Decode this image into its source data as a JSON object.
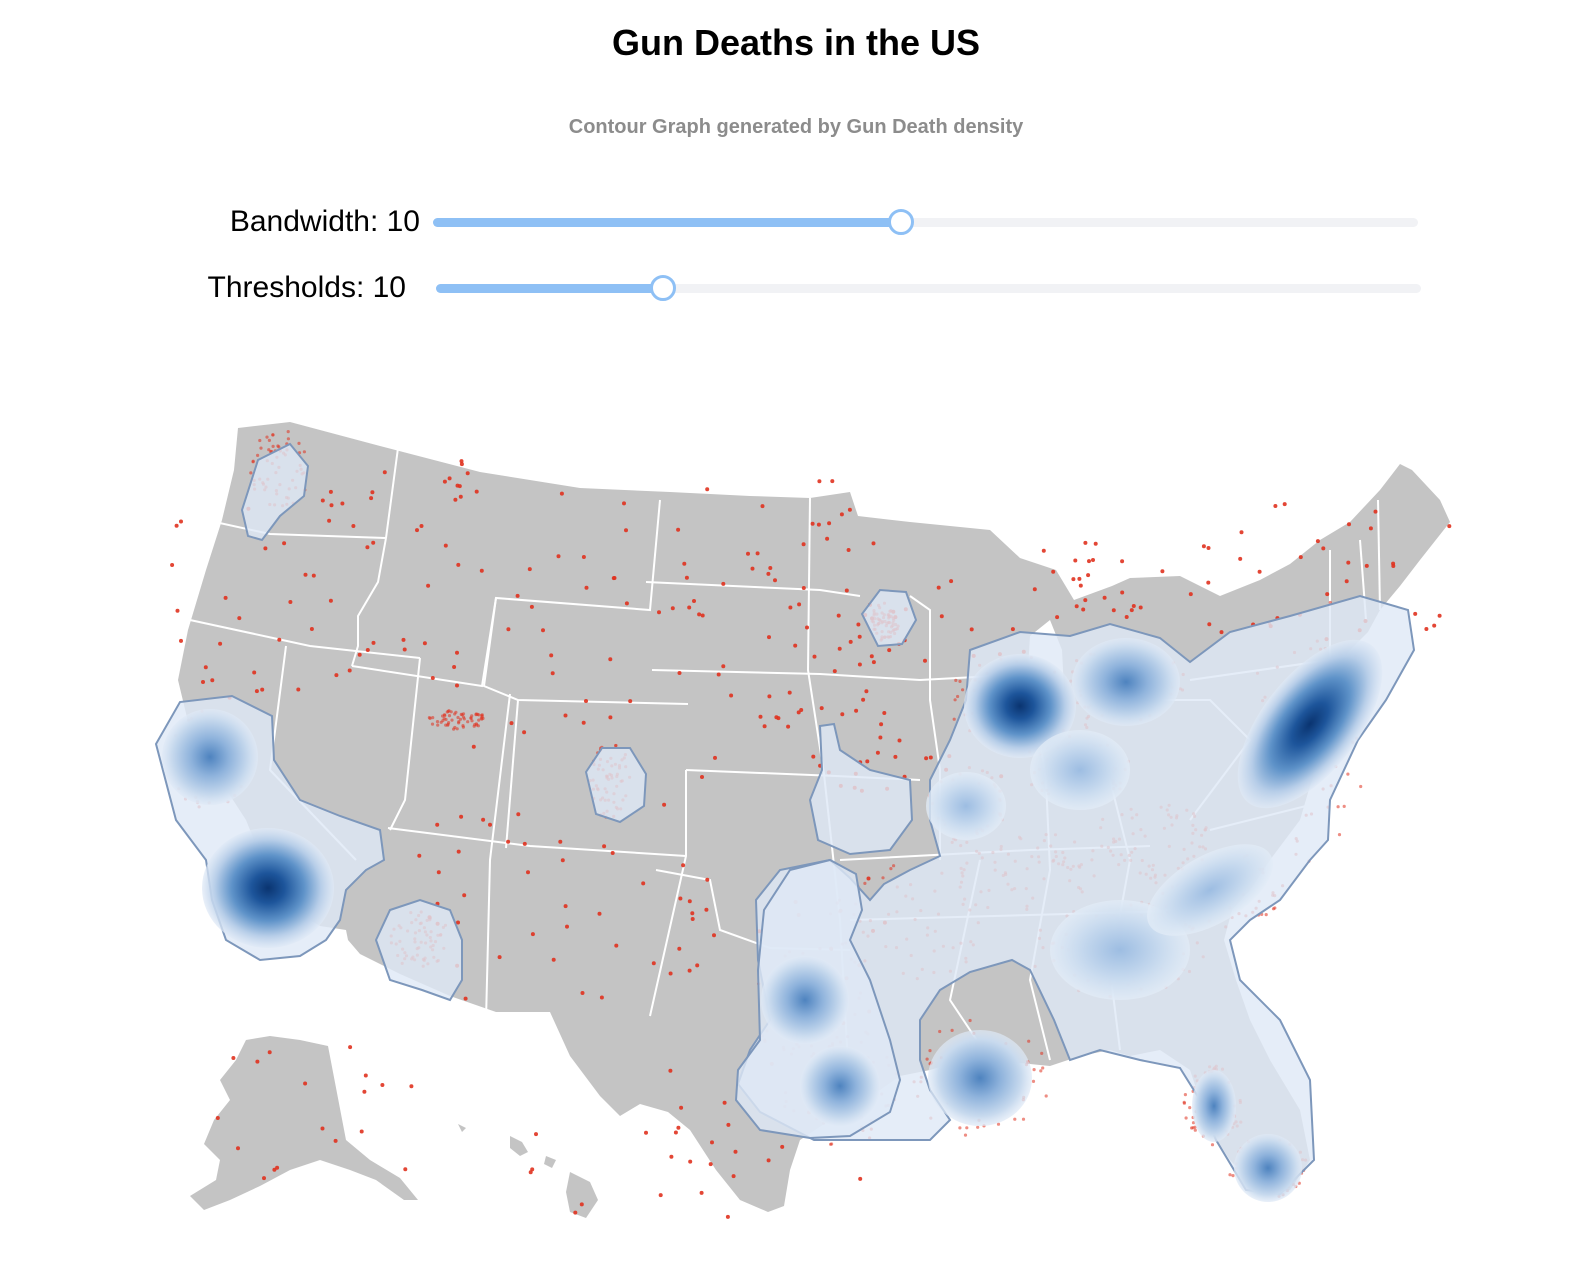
{
  "title": "Gun Deaths in the US",
  "subtitle": "Contour Graph generated by Gun Death density",
  "controls": {
    "bandwidth": {
      "label": "Bandwidth: 10",
      "fraction": 0.475
    },
    "thresholds": {
      "label": "Thresholds: 10",
      "fraction": 0.23
    }
  },
  "colors": {
    "land": "#c4c4c4",
    "state_border": "#ffffff",
    "death_point": "#e0321f",
    "contour_light": "#dfe9f6",
    "contour_dark": "#0a3470",
    "contour_stroke": "#7d97bb",
    "slider_accent": "#8ec0f5"
  },
  "map_type": "dot density with contour overlay"
}
